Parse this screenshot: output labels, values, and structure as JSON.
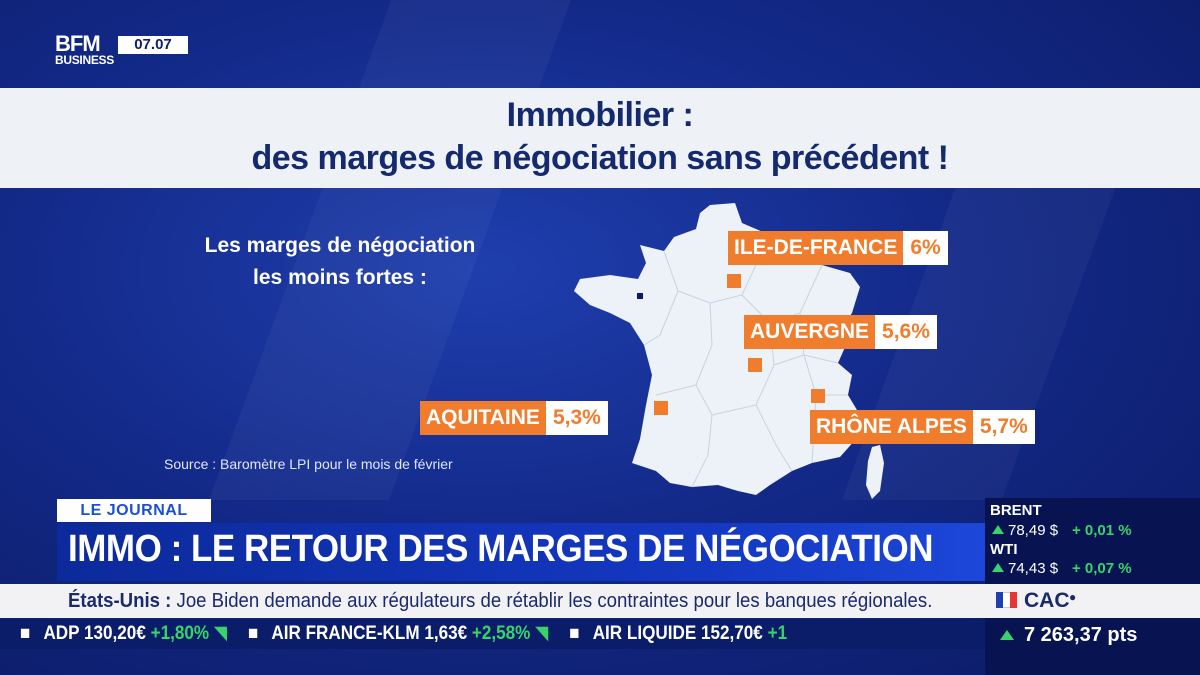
{
  "channel": {
    "logo_main": "BFM",
    "logo_sub": "BUSINESS",
    "clock": "07.07"
  },
  "title": {
    "line1": "Immobilier :",
    "line2": "des marges de négociation sans précédent !"
  },
  "infographic": {
    "subtitle_line1": "Les marges de négociation",
    "subtitle_line2": "les moins fortes :",
    "source": "Source : Baromètre LPI pour le mois de février",
    "regions": [
      {
        "name": "ILE-DE-FRANCE",
        "pct": "6%"
      },
      {
        "name": "AUVERGNE",
        "pct": "5,6%"
      },
      {
        "name": "AQUITAINE",
        "pct": "5,3%"
      },
      {
        "name": "RHÔNE ALPES",
        "pct": "5,7%"
      }
    ],
    "colors": {
      "accent": "#f07d2e",
      "map": "#edf1f8"
    }
  },
  "journal": {
    "tag": "LE JOURNAL",
    "headline": "IMMO : LE RETOUR DES MARGES DE NÉGOCIATION"
  },
  "news": {
    "topic": "États-Unis :",
    "text": " Joe Biden demande aux régulateurs de rétablir les contraintes pour les banques régionales."
  },
  "ticker": [
    {
      "name": "ADP",
      "price": "130,20€",
      "change": "+1,80%"
    },
    {
      "name": "AIR FRANCE-KLM",
      "price": "1,63€",
      "change": "+2,58%"
    },
    {
      "name": "AIR LIQUIDE",
      "price": "152,70€",
      "change": "+1"
    }
  ],
  "markets": {
    "brent": {
      "label": "BRENT",
      "price": "78,49 $",
      "change": "+ 0,01 %"
    },
    "wti": {
      "label": "WTI",
      "price": "74,43 $",
      "change": "+ 0,07 %"
    },
    "cac": {
      "label": "CAC",
      "value": "7 263,37 pts"
    }
  }
}
